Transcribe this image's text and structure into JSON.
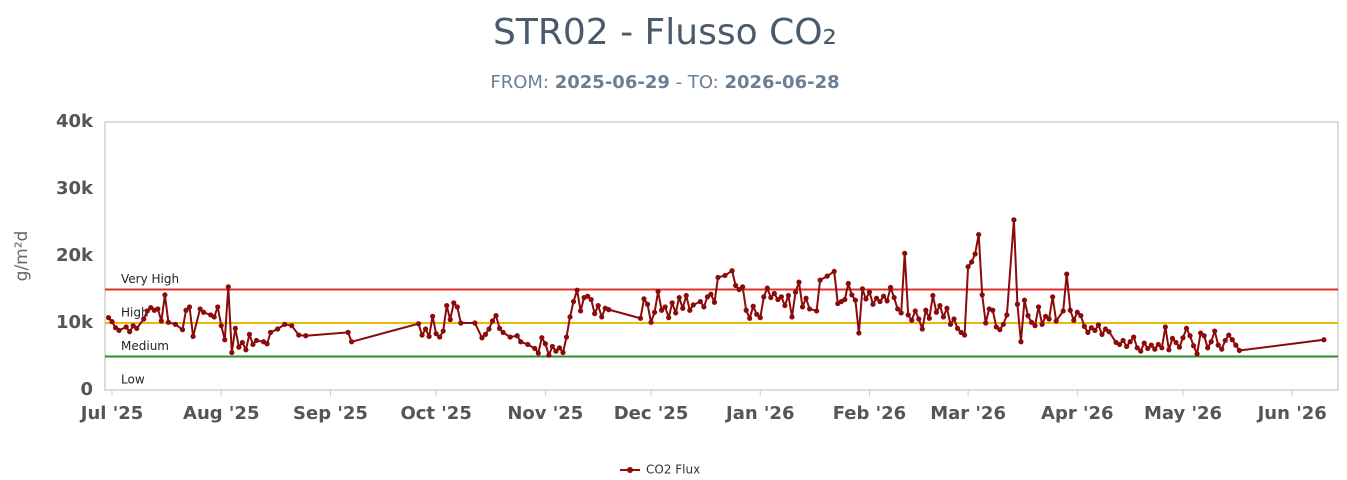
{
  "chart_data": {
    "type": "line",
    "title": "STR02 - Flusso CO₂",
    "subtitle": {
      "from_label": "FROM:",
      "from": "2025-06-29",
      "to_label": "- TO:",
      "to": "2026-06-28"
    },
    "y_label": "g/m²d",
    "xlim": [
      "2025-06-29",
      "2026-06-14"
    ],
    "xticks": [
      {
        "value": "2025-07-01",
        "label": "Jul '25"
      },
      {
        "value": "2025-08-01",
        "label": "Aug '25"
      },
      {
        "value": "2025-09-01",
        "label": "Sep '25"
      },
      {
        "value": "2025-10-01",
        "label": "Oct '25"
      },
      {
        "value": "2025-11-01",
        "label": "Nov '25"
      },
      {
        "value": "2025-12-01",
        "label": "Dec '25"
      },
      {
        "value": "2026-01-01",
        "label": "Jan '26"
      },
      {
        "value": "2026-02-01",
        "label": "Feb '26"
      },
      {
        "value": "2026-03-01",
        "label": "Mar '26"
      },
      {
        "value": "2026-04-01",
        "label": "Apr '26"
      },
      {
        "value": "2026-05-01",
        "label": "May '26"
      },
      {
        "value": "2026-06-01",
        "label": "Jun '26"
      }
    ],
    "ylim": [
      0,
      40000
    ],
    "yticks": [
      0,
      {
        "value": 10000,
        "label": "10k"
      },
      {
        "value": 20000,
        "label": "20k"
      },
      {
        "value": 30000,
        "label": "30k"
      },
      {
        "value": 40000,
        "label": "40k"
      }
    ],
    "thresholds": [
      {
        "value": 0,
        "label": "Low"
      },
      {
        "value": 5000,
        "label": "Medium",
        "color": "#2e8b2e"
      },
      {
        "value": 10000,
        "label": "High",
        "color": "#f2b705"
      },
      {
        "value": 15000,
        "label": "Very High",
        "color": "#e0302c"
      }
    ],
    "x": [
      "2025-06-30",
      "2025-07-01",
      "2025-07-02",
      "2025-07-03",
      "2025-07-05",
      "2025-07-06",
      "2025-07-07",
      "2025-07-08",
      "2025-07-10",
      "2025-07-11",
      "2025-07-12",
      "2025-07-13",
      "2025-07-14",
      "2025-07-15",
      "2025-07-16",
      "2025-07-17",
      "2025-07-19",
      "2025-07-21",
      "2025-07-22",
      "2025-07-23",
      "2025-07-24",
      "2025-07-26",
      "2025-07-27",
      "2025-07-29",
      "2025-07-30",
      "2025-07-31",
      "2025-08-01",
      "2025-08-02",
      "2025-08-03",
      "2025-08-04",
      "2025-08-05",
      "2025-08-06",
      "2025-08-07",
      "2025-08-08",
      "2025-08-09",
      "2025-08-10",
      "2025-08-11",
      "2025-08-13",
      "2025-08-14",
      "2025-08-15",
      "2025-08-17",
      "2025-08-19",
      "2025-08-21",
      "2025-08-23",
      "2025-08-25",
      "2025-09-06",
      "2025-09-07",
      "2025-09-26",
      "2025-09-27",
      "2025-09-28",
      "2025-09-29",
      "2025-09-30",
      "2025-10-01",
      "2025-10-02",
      "2025-10-03",
      "2025-10-04",
      "2025-10-05",
      "2025-10-06",
      "2025-10-07",
      "2025-10-08",
      "2025-10-12",
      "2025-10-14",
      "2025-10-15",
      "2025-10-16",
      "2025-10-17",
      "2025-10-18",
      "2025-10-19",
      "2025-10-20",
      "2025-10-22",
      "2025-10-24",
      "2025-10-25",
      "2025-10-27",
      "2025-10-29",
      "2025-10-30",
      "2025-10-31",
      "2025-11-01",
      "2025-11-02",
      "2025-11-03",
      "2025-11-04",
      "2025-11-05",
      "2025-11-06",
      "2025-11-07",
      "2025-11-08",
      "2025-11-09",
      "2025-11-10",
      "2025-11-11",
      "2025-11-12",
      "2025-11-13",
      "2025-11-14",
      "2025-11-15",
      "2025-11-16",
      "2025-11-17",
      "2025-11-18",
      "2025-11-19",
      "2025-11-28",
      "2025-11-29",
      "2025-11-30",
      "2025-12-01",
      "2025-12-02",
      "2025-12-03",
      "2025-12-04",
      "2025-12-05",
      "2025-12-06",
      "2025-12-07",
      "2025-12-08",
      "2025-12-09",
      "2025-12-10",
      "2025-12-11",
      "2025-12-12",
      "2025-12-13",
      "2025-12-15",
      "2025-12-16",
      "2025-12-17",
      "2025-12-18",
      "2025-12-19",
      "2025-12-20",
      "2025-12-22",
      "2025-12-24",
      "2025-12-25",
      "2025-12-26",
      "2025-12-27",
      "2025-12-28",
      "2025-12-29",
      "2025-12-30",
      "2025-12-31",
      "2026-01-01",
      "2026-01-02",
      "2026-01-03",
      "2026-01-04",
      "2026-01-05",
      "2026-01-06",
      "2026-01-07",
      "2026-01-08",
      "2026-01-09",
      "2026-01-10",
      "2026-01-11",
      "2026-01-12",
      "2026-01-13",
      "2026-01-14",
      "2026-01-15",
      "2026-01-17",
      "2026-01-18",
      "2026-01-20",
      "2026-01-22",
      "2026-01-23",
      "2026-01-24",
      "2026-01-25",
      "2026-01-26",
      "2026-01-27",
      "2026-01-28",
      "2026-01-29",
      "2026-01-30",
      "2026-01-31",
      "2026-02-01",
      "2026-02-02",
      "2026-02-03",
      "2026-02-04",
      "2026-02-05",
      "2026-02-06",
      "2026-02-07",
      "2026-02-08",
      "2026-02-09",
      "2026-02-10",
      "2026-02-11",
      "2026-02-12",
      "2026-02-13",
      "2026-02-14",
      "2026-02-15",
      "2026-02-16",
      "2026-02-17",
      "2026-02-18",
      "2026-02-19",
      "2026-02-20",
      "2026-02-21",
      "2026-02-22",
      "2026-02-23",
      "2026-02-24",
      "2026-02-25",
      "2026-02-26",
      "2026-02-27",
      "2026-02-28",
      "2026-03-01",
      "2026-03-02",
      "2026-03-03",
      "2026-03-04",
      "2026-03-05",
      "2026-03-06",
      "2026-03-07",
      "2026-03-08",
      "2026-03-09",
      "2026-03-10",
      "2026-03-11",
      "2026-03-12",
      "2026-03-14",
      "2026-03-15",
      "2026-03-16",
      "2026-03-17",
      "2026-03-18",
      "2026-03-19",
      "2026-03-20",
      "2026-03-21",
      "2026-03-22",
      "2026-03-23",
      "2026-03-24",
      "2026-03-25",
      "2026-03-26",
      "2026-03-28",
      "2026-03-29",
      "2026-03-30",
      "2026-03-31",
      "2026-04-01",
      "2026-04-02",
      "2026-04-03",
      "2026-04-04",
      "2026-04-05",
      "2026-04-06",
      "2026-04-07",
      "2026-04-08",
      "2026-04-09",
      "2026-04-10",
      "2026-04-12",
      "2026-04-13",
      "2026-04-14",
      "2026-04-15",
      "2026-04-16",
      "2026-04-17",
      "2026-04-18",
      "2026-04-19",
      "2026-04-20",
      "2026-04-21",
      "2026-04-22",
      "2026-04-23",
      "2026-04-24",
      "2026-04-25",
      "2026-04-26",
      "2026-04-27",
      "2026-04-28",
      "2026-04-29",
      "2026-04-30",
      "2026-05-01",
      "2026-05-02",
      "2026-05-03",
      "2026-05-04",
      "2026-05-05",
      "2026-05-06",
      "2026-05-07",
      "2026-05-08",
      "2026-05-09",
      "2026-05-10",
      "2026-05-11",
      "2026-05-12",
      "2026-05-13",
      "2026-05-14",
      "2026-05-15",
      "2026-05-16",
      "2026-05-17",
      "2026-06-10"
    ],
    "series": [
      {
        "name": "CO2 Flux",
        "color": "#8b0a0a",
        "values": [
          10800,
          10200,
          9300,
          8900,
          9400,
          8700,
          9600,
          9200,
          10600,
          11800,
          12300,
          11900,
          12100,
          10300,
          14200,
          10100,
          9800,
          9000,
          11900,
          12400,
          8000,
          12100,
          11600,
          11200,
          10900,
          12400,
          9600,
          7500,
          15400,
          5600,
          9200,
          6400,
          7100,
          6000,
          8300,
          6800,
          7400,
          7200,
          6900,
          8600,
          9100,
          9800,
          9600,
          8200,
          8100,
          8600,
          7200,
          9900,
          8200,
          9100,
          8000,
          11000,
          8400,
          7900,
          8800,
          12600,
          10500,
          13000,
          12400,
          10000,
          10000,
          7800,
          8300,
          9100,
          10300,
          11100,
          9200,
          8600,
          7900,
          8100,
          7200,
          6800,
          6200,
          5500,
          7800,
          6900,
          5200,
          6500,
          5800,
          6300,
          5600,
          7900,
          10900,
          13200,
          14900,
          11800,
          13800,
          14000,
          13500,
          11400,
          12600,
          10900,
          12200,
          12000,
          10700,
          13600,
          12800,
          10100,
          11600,
          14700,
          11900,
          12400,
          10800,
          13000,
          11500,
          13800,
          12200,
          14100,
          11900,
          12700,
          13200,
          12400,
          13900,
          14300,
          13100,
          16800,
          17100,
          17800,
          15600,
          15000,
          15400,
          11900,
          10700,
          12500,
          11300,
          10800,
          13900,
          15200,
          13800,
          14400,
          13500,
          13900,
          12600,
          14100,
          10900,
          14600,
          16100,
          12400,
          13700,
          12100,
          11800,
          16400,
          17000,
          17700,
          12900,
          13200,
          13500,
          15900,
          14200,
          13400,
          8500,
          15100,
          13600,
          14600,
          12800,
          13700,
          13200,
          14000,
          13300,
          15300,
          13800,
          12100,
          11500,
          20400,
          11200,
          10400,
          11800,
          10600,
          9100,
          11900,
          10700,
          14100,
          11600,
          12600,
          10900,
          12200,
          9800,
          10600,
          9200,
          8600,
          8200,
          18400,
          19100,
          20300,
          23200,
          14200,
          10000,
          12100,
          11900,
          9400,
          9000,
          9800,
          11200,
          25400,
          12800,
          7200,
          13400,
          11100,
          10100,
          9600,
          12400,
          9800,
          11000,
          10600,
          13900,
          10300,
          11800,
          17300,
          11900,
          10400,
          11600,
          11100,
          9500,
          8600,
          9300,
          8900,
          9700,
          8300,
          9100,
          8700,
          7100,
          6800,
          7400,
          6500,
          7200,
          7900,
          6300,
          5800,
          7000,
          6200,
          6700,
          6100,
          6800,
          6300,
          9400,
          6000,
          7700,
          7100,
          6400,
          7800,
          9200,
          8100,
          6600,
          5400,
          8500,
          8100,
          6300,
          7200,
          8800,
          6700,
          6100,
          7400,
          8200,
          7500,
          6700,
          5900,
          7500
        ]
      }
    ]
  }
}
